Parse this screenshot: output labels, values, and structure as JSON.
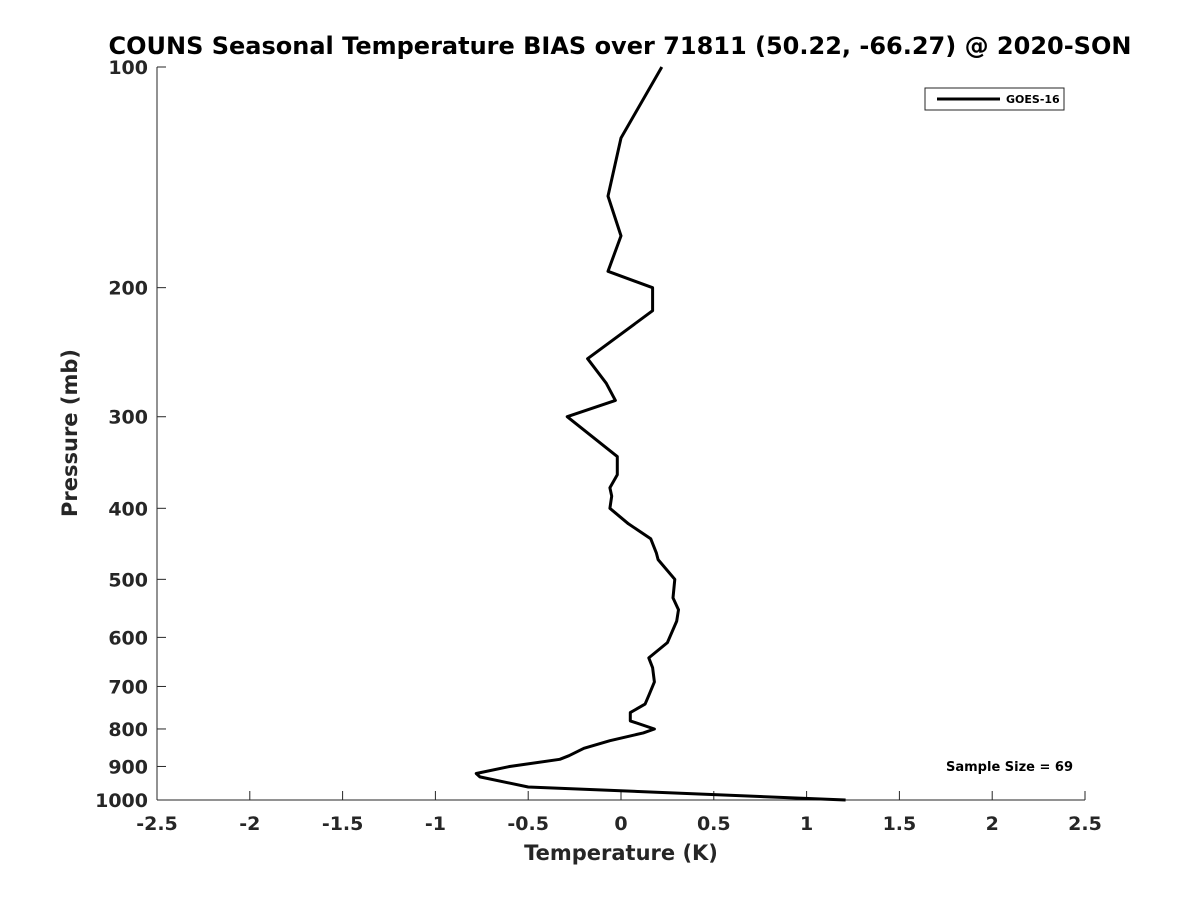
{
  "chart_data": {
    "type": "line",
    "title": "COUNS Seasonal Temperature BIAS over 71811 (50.22, -66.27) @ 2020-SON",
    "xlabel": "Temperature (K)",
    "ylabel": "Pressure (mb)",
    "xlim": [
      -2.5,
      2.5
    ],
    "ylim": [
      100,
      1000
    ],
    "y_scale": "log",
    "y_reversed": true,
    "x_ticks": [
      -2.5,
      -2,
      -1.5,
      -1,
      -0.5,
      0,
      0.5,
      1,
      1.5,
      2,
      2.5
    ],
    "x_tick_labels": [
      "-2.5",
      "-2",
      "-1.5",
      "-1",
      "-0.5",
      "0",
      "0.5",
      "1",
      "1.5",
      "2",
      "2.5"
    ],
    "y_ticks": [
      100,
      200,
      300,
      400,
      500,
      600,
      700,
      800,
      900,
      1000
    ],
    "y_tick_labels": [
      "100",
      "200",
      "300",
      "400",
      "500",
      "600",
      "700",
      "800",
      "900",
      "1000"
    ],
    "grid": false,
    "legend_position": "top-right",
    "series": [
      {
        "name": "GOES-16",
        "color": "#000000",
        "x": [
          0.22,
          0.0,
          -0.07,
          0.0,
          -0.07,
          0.17,
          0.17,
          -0.18,
          -0.08,
          -0.03,
          -0.29,
          -0.02,
          -0.02,
          -0.06,
          -0.05,
          -0.06,
          0.04,
          0.16,
          0.19,
          0.2,
          0.29,
          0.28,
          0.31,
          0.3,
          0.25,
          0.15,
          0.17,
          0.18,
          0.15,
          0.13,
          0.05,
          0.05,
          0.18,
          0.12,
          -0.06,
          -0.2,
          -0.28,
          -0.33,
          -0.6,
          -0.78,
          -0.76,
          -0.5,
          1.21
        ],
        "y": [
          100,
          125,
          150,
          170,
          190,
          200,
          215,
          250,
          270,
          285,
          300,
          340,
          360,
          375,
          385,
          400,
          420,
          440,
          460,
          470,
          500,
          530,
          550,
          570,
          610,
          640,
          660,
          690,
          720,
          740,
          760,
          780,
          800,
          810,
          830,
          850,
          870,
          880,
          900,
          920,
          930,
          960,
          1000
        ]
      }
    ],
    "annotations": [
      "Sample Size = 69"
    ]
  }
}
